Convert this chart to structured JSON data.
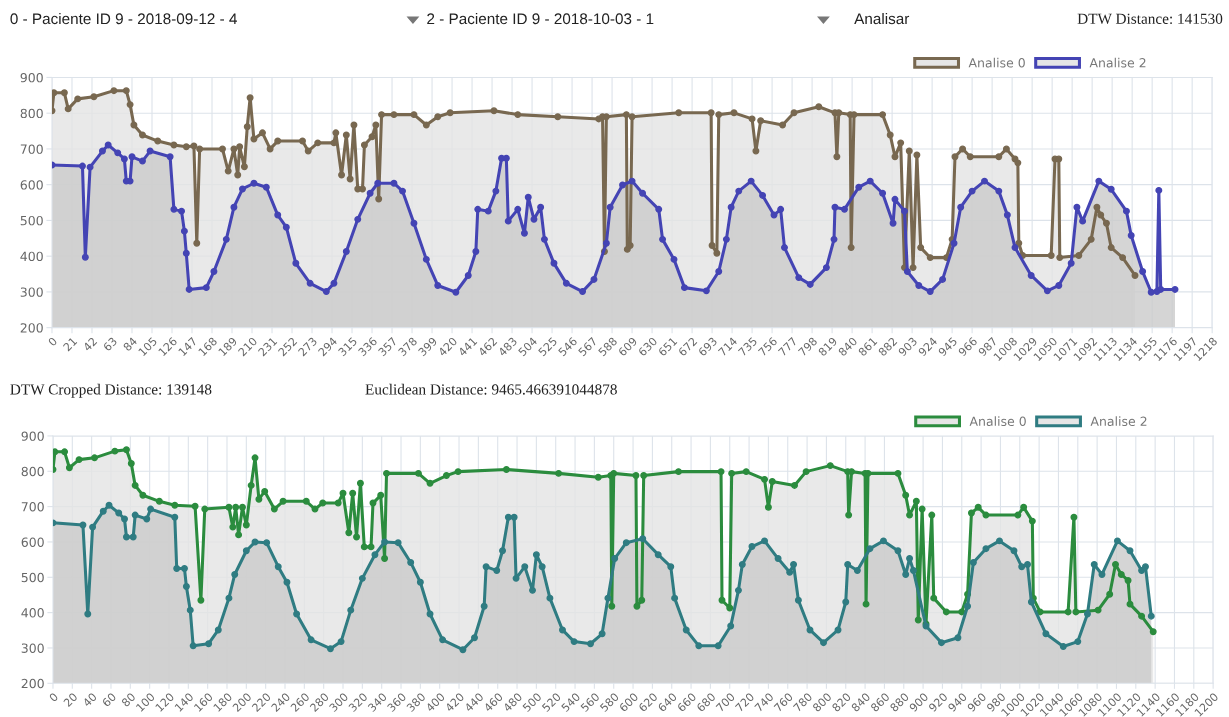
{
  "chart_data": [
    {
      "type": "area",
      "annotations": [
        "0 - Paciente ID 9 - 2018-09-12 - 4",
        "2 - Paciente ID 9 - 2018-10-03 - 1",
        "Analisar",
        "DTW Distance: 141530"
      ],
      "xlim": [
        0,
        1218
      ],
      "xticks": [
        0,
        21,
        42,
        63,
        84,
        105,
        126,
        147,
        168,
        189,
        210,
        231,
        252,
        273,
        294,
        315,
        336,
        357,
        378,
        399,
        420,
        441,
        462,
        483,
        504,
        525,
        546,
        567,
        588,
        609,
        630,
        651,
        672,
        693,
        714,
        735,
        756,
        777,
        798,
        819,
        840,
        861,
        882,
        903,
        924,
        945,
        966,
        987,
        1008,
        1029,
        1050,
        1071,
        1092,
        1113,
        1134,
        1155,
        1176,
        1197,
        1218
      ],
      "ylim": [
        200,
        900
      ],
      "yticks": [
        200,
        300,
        400,
        500,
        600,
        700,
        800,
        900
      ],
      "grid": true,
      "legend": "top right",
      "marker": "circle",
      "series": [
        {
          "name": "Analise 0",
          "color": "#786850",
          "x": [
            0,
            2,
            13,
            17,
            27,
            44,
            65,
            78,
            82,
            86,
            95,
            111,
            128,
            141,
            149,
            152,
            155,
            179,
            185,
            191,
            195,
            197,
            202,
            205,
            208,
            212,
            221,
            229,
            237,
            263,
            269,
            279,
            296,
            298,
            304,
            309,
            313,
            317,
            321,
            326,
            328,
            336,
            340,
            343,
            346,
            359,
            380,
            393,
            405,
            418,
            464,
            489,
            531,
            574,
            578,
            580,
            582,
            603,
            604,
            607,
            609,
            658,
            692,
            693,
            698,
            700,
            716,
            735,
            739,
            744,
            767,
            779,
            805,
            822,
            824,
            826,
            838,
            839,
            842,
            872,
            880,
            885,
            891,
            895,
            900,
            904,
            908,
            912,
            922,
            939,
            945,
            948,
            956,
            964,
            994,
            1002,
            1011,
            1014,
            1015,
            1019,
            1049,
            1053,
            1057,
            1058,
            1078,
            1091,
            1097,
            1101,
            1107,
            1112,
            1124,
            1137
          ],
          "values": [
            807,
            857,
            857,
            812,
            840,
            846,
            863,
            863,
            824,
            767,
            739,
            722,
            711,
            706,
            708,
            436,
            700,
            700,
            638,
            700,
            627,
            706,
            650,
            762,
            843,
            728,
            745,
            700,
            722,
            722,
            694,
            717,
            717,
            745,
            627,
            739,
            616,
            767,
            588,
            588,
            711,
            734,
            767,
            560,
            796,
            796,
            796,
            767,
            790,
            801,
            807,
            796,
            790,
            784,
            790,
            413,
            790,
            796,
            419,
            430,
            790,
            801,
            801,
            430,
            408,
            796,
            801,
            784,
            694,
            779,
            767,
            801,
            818,
            801,
            678,
            801,
            796,
            424,
            796,
            796,
            739,
            678,
            717,
            368,
            694,
            368,
            683,
            424,
            396,
            396,
            447,
            678,
            700,
            678,
            678,
            700,
            672,
            661,
            436,
            402,
            402,
            672,
            672,
            396,
            402,
            447,
            537,
            515,
            492,
            424,
            396,
            346
          ]
        },
        {
          "name": "Analise 2",
          "color": "#4444b4",
          "x": [
            0,
            32,
            35,
            40,
            53,
            59,
            69,
            76,
            78,
            82,
            84,
            95,
            103,
            124,
            128,
            136,
            139,
            141,
            144,
            162,
            170,
            183,
            191,
            200,
            212,
            225,
            237,
            246,
            256,
            271,
            288,
            296,
            309,
            321,
            334,
            342,
            359,
            368,
            380,
            393,
            405,
            424,
            437,
            445,
            447,
            458,
            466,
            472,
            477,
            479,
            489,
            496,
            500,
            506,
            513,
            517,
            527,
            540,
            557,
            569,
            582,
            586,
            599,
            609,
            620,
            637,
            641,
            653,
            664,
            687,
            700,
            708,
            713,
            721,
            734,
            746,
            758,
            765,
            769,
            784,
            796,
            813,
            821,
            822,
            832,
            847,
            859,
            872,
            883,
            885,
            895,
            898,
            910,
            922,
            935,
            947,
            954,
            966,
            979,
            994,
            1003,
            1011,
            1028,
            1045,
            1057,
            1070,
            1076,
            1082,
            1099,
            1112,
            1128,
            1133,
            1145,
            1154,
            1160,
            1162,
            1164,
            1179
          ],
          "values": [
            655,
            652,
            397,
            649,
            694,
            711,
            689,
            672,
            610,
            610,
            678,
            666,
            694,
            678,
            531,
            526,
            470,
            408,
            307,
            312,
            357,
            447,
            537,
            588,
            604,
            593,
            515,
            481,
            380,
            324,
            301,
            324,
            413,
            503,
            576,
            604,
            604,
            582,
            492,
            391,
            318,
            299,
            346,
            413,
            531,
            526,
            582,
            674,
            674,
            498,
            531,
            464,
            565,
            503,
            537,
            447,
            380,
            324,
            301,
            335,
            436,
            537,
            599,
            610,
            576,
            531,
            447,
            391,
            312,
            303,
            357,
            447,
            537,
            582,
            610,
            570,
            515,
            531,
            424,
            340,
            321,
            368,
            447,
            537,
            531,
            593,
            610,
            576,
            492,
            559,
            526,
            357,
            318,
            301,
            335,
            436,
            537,
            582,
            610,
            582,
            515,
            424,
            346,
            303,
            318,
            380,
            537,
            498,
            610,
            587,
            526,
            458,
            357,
            299,
            301,
            584,
            307,
            307
          ]
        }
      ]
    },
    {
      "type": "area",
      "annotations": [
        "DTW Cropped Distance: 139148",
        "Euclidean Distance: 9465.466391044878"
      ],
      "xlim": [
        0,
        1200
      ],
      "xticks": [
        0,
        20,
        40,
        60,
        80,
        100,
        120,
        140,
        160,
        180,
        200,
        220,
        240,
        260,
        280,
        300,
        320,
        340,
        360,
        380,
        400,
        420,
        440,
        460,
        480,
        500,
        520,
        540,
        560,
        580,
        600,
        620,
        640,
        660,
        680,
        700,
        720,
        740,
        760,
        780,
        800,
        820,
        840,
        860,
        880,
        900,
        920,
        940,
        960,
        980,
        1000,
        1020,
        1040,
        1060,
        1080,
        1100,
        1120,
        1140,
        1160,
        1180,
        1200
      ],
      "ylim": [
        200,
        900
      ],
      "yticks": [
        200,
        300,
        400,
        500,
        600,
        700,
        800,
        900
      ],
      "grid": true,
      "legend": "top right",
      "marker": "circle",
      "series": [
        {
          "name": "Analise 0",
          "color": "#2b8c3e",
          "x": [
            0,
            2,
            12,
            17,
            27,
            43,
            64,
            76,
            81,
            85,
            93,
            110,
            126,
            147,
            153,
            157,
            182,
            186,
            189,
            192,
            196,
            200,
            205,
            209,
            213,
            219,
            229,
            238,
            262,
            271,
            279,
            295,
            300,
            306,
            310,
            314,
            318,
            322,
            329,
            331,
            339,
            343,
            345,
            378,
            390,
            407,
            419,
            469,
            523,
            564,
            577,
            578,
            580,
            603,
            604,
            609,
            611,
            647,
            691,
            692,
            700,
            702,
            717,
            736,
            740,
            744,
            767,
            779,
            804,
            822,
            823,
            826,
            840,
            841,
            843,
            874,
            882,
            886,
            893,
            895,
            899,
            903,
            909,
            911,
            924,
            940,
            946,
            950,
            957,
            965,
            998,
            1004,
            1013,
            1014,
            1021,
            1050,
            1056,
            1058,
            1081,
            1093,
            1099,
            1105,
            1112,
            1114,
            1126,
            1138
          ],
          "values": [
            805,
            855,
            855,
            810,
            833,
            838,
            857,
            861,
            822,
            760,
            732,
            715,
            704,
            701,
            435,
            693,
            698,
            642,
            698,
            620,
            698,
            648,
            760,
            838,
            721,
            743,
            693,
            715,
            715,
            693,
            710,
            710,
            738,
            626,
            738,
            614,
            766,
            586,
            586,
            710,
            732,
            553,
            794,
            794,
            766,
            788,
            799,
            805,
            794,
            783,
            788,
            418,
            794,
            788,
            418,
            435,
            788,
            799,
            799,
            435,
            413,
            794,
            799,
            777,
            698,
            771,
            760,
            799,
            816,
            799,
            676,
            799,
            794,
            424,
            794,
            794,
            732,
            676,
            715,
            379,
            693,
            368,
            676,
            441,
            402,
            402,
            452,
            682,
            698,
            676,
            676,
            698,
            659,
            441,
            402,
            402,
            670,
            402,
            407,
            452,
            536,
            508,
            491,
            424,
            390,
            346
          ]
        },
        {
          "name": "Analise 2",
          "color": "#2f7c82",
          "x": [
            0,
            31,
            36,
            41,
            52,
            58,
            68,
            74,
            76,
            83,
            85,
            97,
            101,
            126,
            128,
            136,
            138,
            142,
            145,
            161,
            171,
            182,
            188,
            200,
            209,
            221,
            233,
            242,
            252,
            267,
            287,
            298,
            308,
            320,
            333,
            343,
            357,
            370,
            380,
            390,
            403,
            424,
            436,
            446,
            448,
            459,
            465,
            471,
            477,
            479,
            488,
            496,
            500,
            506,
            514,
            527,
            539,
            556,
            568,
            574,
            581,
            593,
            610,
            626,
            639,
            643,
            655,
            668,
            688,
            701,
            709,
            713,
            723,
            736,
            750,
            762,
            766,
            771,
            783,
            797,
            812,
            820,
            822,
            832,
            845,
            859,
            874,
            882,
            886,
            890,
            903,
            919,
            936,
            946,
            952,
            965,
            979,
            994,
            1002,
            1008,
            1012,
            1027,
            1045,
            1060,
            1070,
            1077,
            1085,
            1101,
            1114,
            1126,
            1130,
            1136
          ],
          "values": [
            654,
            648,
            396,
            642,
            687,
            704,
            682,
            665,
            614,
            614,
            676,
            665,
            693,
            670,
            525,
            525,
            474,
            407,
            306,
            312,
            351,
            441,
            508,
            575,
            600,
            598,
            530,
            486,
            396,
            323,
            298,
            318,
            407,
            497,
            564,
            600,
            598,
            542,
            486,
            396,
            323,
            295,
            329,
            418,
            530,
            519,
            575,
            670,
            670,
            497,
            530,
            463,
            564,
            530,
            441,
            351,
            318,
            312,
            340,
            441,
            553,
            598,
            609,
            564,
            530,
            441,
            351,
            306,
            306,
            362,
            463,
            536,
            587,
            603,
            553,
            514,
            536,
            435,
            351,
            315,
            351,
            430,
            536,
            519,
            581,
            603,
            575,
            508,
            553,
            519,
            362,
            315,
            329,
            418,
            542,
            581,
            603,
            575,
            530,
            536,
            430,
            340,
            304,
            318,
            396,
            536,
            508,
            603,
            575,
            519,
            530,
            390
          ]
        }
      ]
    }
  ]
}
